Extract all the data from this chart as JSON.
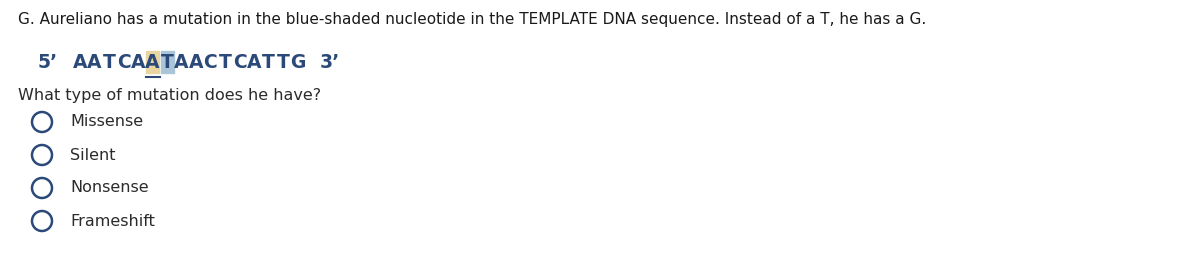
{
  "title_text": "G. Aureliano has a mutation in the blue-shaded nucleotide in the TEMPLATE DNA sequence. Instead of a T, he has a G.",
  "sequence_before": "AATCA",
  "sequence_tan": "A",
  "sequence_blue": "T",
  "sequence_after": "AACTCATTG",
  "question": "What type of mutation does he have?",
  "options": [
    "Missense",
    "Silent",
    "Nonsense",
    "Frameshift"
  ],
  "bg_color": "#ffffff",
  "title_color": "#1a1a1a",
  "seq_color": "#2b4a7a",
  "tan_bg": "#e8d5a0",
  "blue_bg": "#aac4d8",
  "option_color": "#2b2b2b",
  "circle_color": "#2b4a7a",
  "title_fontsize": 11.0,
  "seq_fontsize": 13.5,
  "question_fontsize": 11.5,
  "option_fontsize": 11.5
}
